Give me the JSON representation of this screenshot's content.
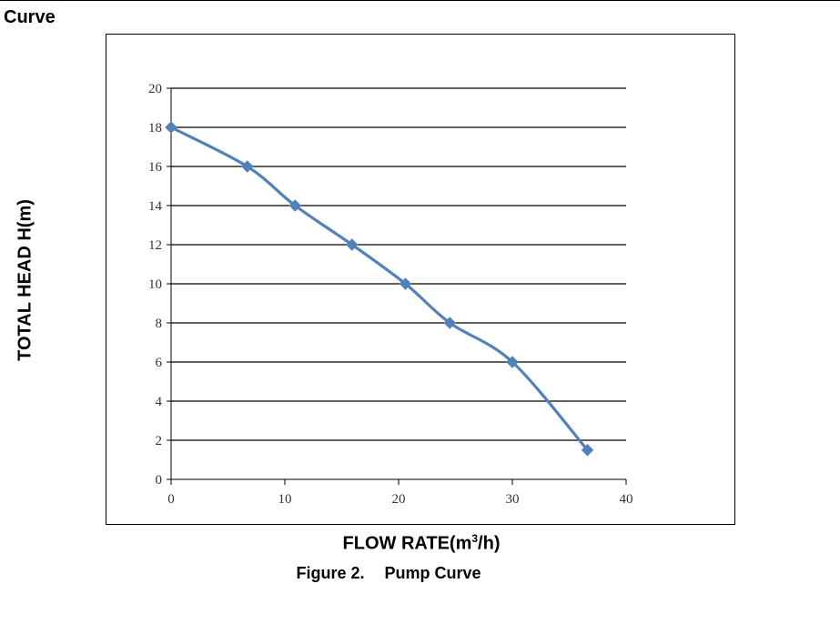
{
  "page": {
    "section_heading": "Curve",
    "caption_prefix": "Figure 2.",
    "caption_text": "Pump Curve"
  },
  "chart_data": {
    "type": "line",
    "title": "",
    "xlabel_main": "FLOW RATE(m",
    "xlabel_sup": "3",
    "xlabel_tail": "/h)",
    "ylabel": "TOTAL HEAD H(m)",
    "xlim": [
      0,
      40
    ],
    "ylim": [
      0,
      20
    ],
    "x_ticks": [
      0,
      10,
      20,
      30,
      40
    ],
    "y_ticks": [
      0,
      2,
      4,
      6,
      8,
      10,
      12,
      14,
      16,
      18,
      20
    ],
    "grid": "horizontal",
    "legend": "none",
    "line_color": "#4f81bd",
    "series": [
      {
        "x": [
          0,
          6.7,
          10.9,
          15.9,
          20.6,
          24.5,
          30.0,
          36.6
        ],
        "y": [
          18,
          16,
          14,
          12,
          10,
          8,
          6,
          1.5
        ]
      }
    ]
  }
}
